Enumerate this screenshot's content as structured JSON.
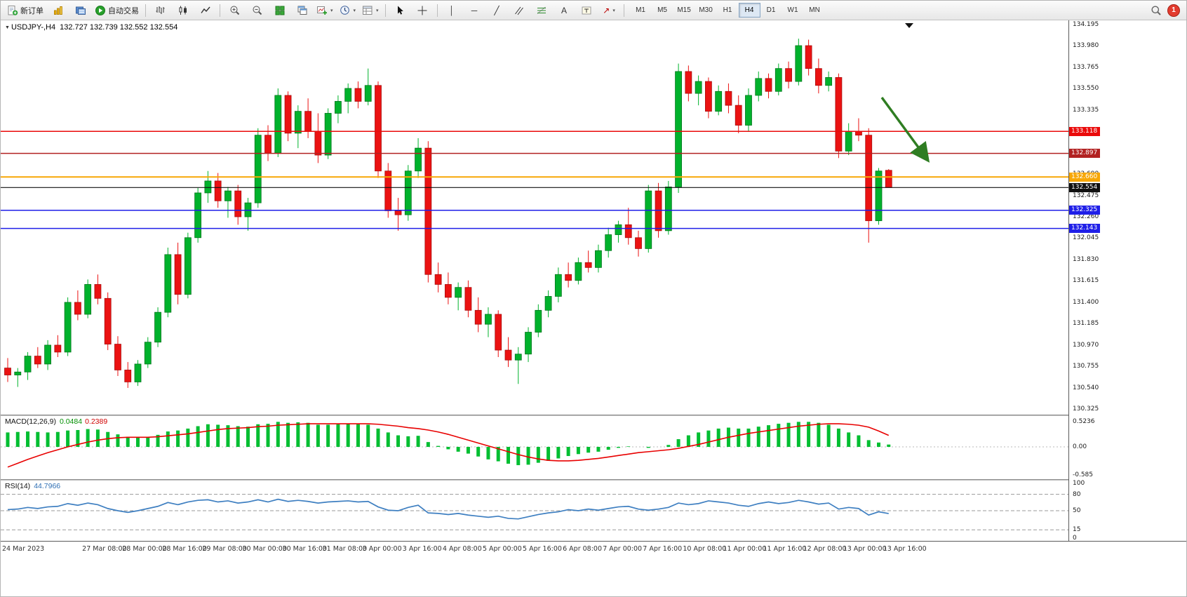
{
  "toolbar": {
    "new_order": "新订单",
    "auto_trading": "自动交易",
    "timeframes": [
      "M1",
      "M5",
      "M15",
      "M30",
      "H1",
      "H4",
      "D1",
      "W1",
      "MN"
    ],
    "active_timeframe": "H4",
    "notification_count": "1"
  },
  "chart": {
    "title": "USDJPY-,H4",
    "ohlc": "132.727 132.739 132.552 132.554",
    "axis_ticks": [
      "134.195",
      "133.980",
      "133.765",
      "133.550",
      "133.335",
      "133.120",
      "132.905",
      "132.690",
      "132.475",
      "132.260",
      "132.045",
      "131.830",
      "131.615",
      "131.400",
      "131.185",
      "130.970",
      "130.755",
      "130.540",
      "130.325"
    ],
    "hlines": [
      {
        "price": 133.118,
        "label": "133.118",
        "color": "#EA0A0A",
        "width": 1.5
      },
      {
        "price": 132.897,
        "label": "132.897",
        "color": "#B22222",
        "width": 1.5
      },
      {
        "price": 132.66,
        "label": "132.660",
        "color": "#F7A707",
        "width": 2
      },
      {
        "price": 132.554,
        "label": "132.554",
        "color": "#111111",
        "width": 1.2
      },
      {
        "price": 132.325,
        "label": "132.325",
        "color": "#1F1FE8",
        "width": 1.5
      },
      {
        "price": 132.143,
        "label": "132.143",
        "color": "#1F1FE8",
        "width": 1.5
      }
    ]
  },
  "macd": {
    "name": "MACD(12,26,9)",
    "main_value": "0.0484",
    "signal_value": "0.2389",
    "axis": [
      "0.5236",
      "0.00",
      "-0.585"
    ]
  },
  "rsi": {
    "name": "RSI(14)",
    "value": "44.7966",
    "axis": [
      "100",
      "80",
      "50",
      "15",
      "0"
    ],
    "levels": [
      80,
      50,
      15
    ]
  },
  "chart_data": {
    "type": "candlestick",
    "symbol": "USDJPY-",
    "period": "H4",
    "ylim": [
      130.3,
      134.22
    ],
    "colors": {
      "up": "#00B22C",
      "down": "#EB1212",
      "up_edge": "#00751c",
      "down_edge": "#a80f0f",
      "macd_hist": "#00BE31",
      "macd_signal": "#E80000",
      "rsi": "#3E7FC1",
      "arrow": "#2F7D22"
    },
    "candles": [
      [
        130.74,
        130.84,
        130.6,
        130.67
      ],
      [
        130.67,
        130.74,
        130.55,
        130.7
      ],
      [
        130.7,
        130.9,
        130.62,
        130.86
      ],
      [
        130.86,
        130.95,
        130.74,
        130.78
      ],
      [
        130.78,
        131.02,
        130.72,
        130.97
      ],
      [
        130.97,
        131.07,
        130.85,
        130.9
      ],
      [
        130.9,
        131.45,
        130.86,
        131.4
      ],
      [
        131.4,
        131.52,
        131.22,
        131.28
      ],
      [
        131.28,
        131.63,
        131.24,
        131.58
      ],
      [
        131.58,
        131.68,
        131.38,
        131.44
      ],
      [
        131.44,
        131.5,
        130.92,
        130.98
      ],
      [
        130.98,
        131.06,
        130.66,
        130.72
      ],
      [
        130.72,
        130.8,
        130.54,
        130.6
      ],
      [
        130.6,
        130.82,
        130.56,
        130.78
      ],
      [
        130.78,
        131.05,
        130.74,
        131.0
      ],
      [
        131.0,
        131.35,
        130.95,
        131.3
      ],
      [
        131.3,
        131.95,
        131.25,
        131.88
      ],
      [
        131.88,
        132.0,
        131.38,
        131.48
      ],
      [
        131.48,
        132.1,
        131.44,
        132.05
      ],
      [
        132.05,
        132.55,
        132.0,
        132.5
      ],
      [
        132.5,
        132.72,
        132.4,
        132.62
      ],
      [
        132.62,
        132.7,
        132.35,
        132.42
      ],
      [
        132.42,
        132.56,
        132.25,
        132.52
      ],
      [
        132.52,
        132.58,
        132.18,
        132.26
      ],
      [
        132.26,
        132.45,
        132.12,
        132.4
      ],
      [
        132.4,
        133.15,
        132.35,
        133.08
      ],
      [
        133.08,
        133.18,
        132.82,
        132.9
      ],
      [
        132.9,
        133.55,
        132.86,
        133.48
      ],
      [
        133.48,
        133.52,
        133.02,
        133.1
      ],
      [
        133.1,
        133.38,
        132.95,
        133.32
      ],
      [
        133.32,
        133.45,
        133.05,
        133.12
      ],
      [
        133.12,
        133.3,
        132.8,
        132.88
      ],
      [
        132.88,
        133.35,
        132.84,
        133.3
      ],
      [
        133.3,
        133.48,
        133.2,
        133.42
      ],
      [
        133.42,
        133.6,
        133.3,
        133.55
      ],
      [
        133.55,
        133.62,
        133.35,
        133.42
      ],
      [
        133.42,
        133.75,
        133.38,
        133.58
      ],
      [
        133.58,
        133.62,
        132.65,
        132.72
      ],
      [
        132.72,
        132.8,
        132.25,
        132.32
      ],
      [
        132.32,
        132.45,
        132.12,
        132.28
      ],
      [
        132.28,
        132.78,
        132.22,
        132.72
      ],
      [
        132.72,
        133.05,
        132.65,
        132.95
      ],
      [
        132.95,
        133.02,
        131.6,
        131.68
      ],
      [
        131.68,
        131.8,
        131.5,
        131.58
      ],
      [
        131.58,
        131.7,
        131.38,
        131.45
      ],
      [
        131.45,
        131.6,
        131.32,
        131.55
      ],
      [
        131.55,
        131.62,
        131.25,
        131.32
      ],
      [
        131.32,
        131.45,
        131.1,
        131.18
      ],
      [
        131.18,
        131.35,
        131.05,
        131.28
      ],
      [
        131.28,
        131.32,
        130.85,
        130.92
      ],
      [
        130.92,
        131.05,
        130.75,
        130.82
      ],
      [
        130.82,
        130.95,
        130.58,
        130.88
      ],
      [
        130.88,
        131.15,
        130.8,
        131.1
      ],
      [
        131.1,
        131.38,
        131.05,
        131.32
      ],
      [
        131.32,
        131.52,
        131.25,
        131.46
      ],
      [
        131.46,
        131.75,
        131.4,
        131.68
      ],
      [
        131.68,
        131.8,
        131.55,
        131.62
      ],
      [
        131.62,
        131.85,
        131.58,
        131.8
      ],
      [
        131.8,
        131.92,
        131.7,
        131.75
      ],
      [
        131.75,
        131.98,
        131.7,
        131.92
      ],
      [
        131.92,
        132.15,
        131.85,
        132.08
      ],
      [
        132.08,
        132.22,
        132.0,
        132.18
      ],
      [
        132.18,
        132.35,
        131.98,
        132.05
      ],
      [
        132.05,
        132.12,
        131.86,
        131.94
      ],
      [
        131.94,
        132.58,
        131.9,
        132.52
      ],
      [
        132.52,
        132.6,
        132.05,
        132.12
      ],
      [
        132.12,
        132.62,
        132.08,
        132.56
      ],
      [
        132.56,
        133.8,
        132.5,
        133.72
      ],
      [
        133.72,
        133.78,
        133.42,
        133.5
      ],
      [
        133.5,
        133.68,
        133.38,
        133.62
      ],
      [
        133.62,
        133.66,
        133.25,
        133.32
      ],
      [
        133.32,
        133.58,
        133.28,
        133.52
      ],
      [
        133.52,
        133.6,
        133.3,
        133.38
      ],
      [
        133.38,
        133.48,
        133.1,
        133.18
      ],
      [
        133.18,
        133.55,
        133.12,
        133.48
      ],
      [
        133.48,
        133.72,
        133.42,
        133.65
      ],
      [
        133.65,
        133.7,
        133.45,
        133.52
      ],
      [
        133.52,
        133.8,
        133.48,
        133.75
      ],
      [
        133.75,
        133.82,
        133.55,
        133.62
      ],
      [
        133.62,
        134.05,
        133.58,
        133.98
      ],
      [
        133.98,
        134.04,
        133.68,
        133.75
      ],
      [
        133.75,
        133.85,
        133.5,
        133.58
      ],
      [
        133.58,
        133.72,
        133.52,
        133.66
      ],
      [
        133.66,
        133.7,
        132.85,
        132.92
      ],
      [
        132.92,
        133.2,
        132.88,
        133.12
      ],
      [
        133.12,
        133.25,
        133.02,
        133.08
      ],
      [
        133.08,
        133.15,
        132.0,
        132.22
      ],
      [
        132.22,
        132.75,
        132.18,
        132.72
      ],
      [
        132.727,
        132.739,
        132.552,
        132.554
      ]
    ],
    "macd_hist": [
      0.3,
      0.31,
      0.32,
      0.31,
      0.3,
      0.31,
      0.34,
      0.35,
      0.37,
      0.36,
      0.31,
      0.26,
      0.21,
      0.19,
      0.21,
      0.25,
      0.32,
      0.34,
      0.38,
      0.43,
      0.47,
      0.46,
      0.45,
      0.43,
      0.42,
      0.47,
      0.48,
      0.52,
      0.5,
      0.51,
      0.5,
      0.46,
      0.46,
      0.47,
      0.48,
      0.47,
      0.46,
      0.38,
      0.3,
      0.24,
      0.22,
      0.23,
      0.1,
      0.02,
      -0.05,
      -0.1,
      -0.14,
      -0.2,
      -0.26,
      -0.3,
      -0.35,
      -0.38,
      -0.37,
      -0.33,
      -0.29,
      -0.24,
      -0.19,
      -0.15,
      -0.12,
      -0.1,
      -0.06,
      -0.02,
      0.01,
      0.0,
      -0.02,
      0.0,
      0.04,
      0.16,
      0.24,
      0.3,
      0.34,
      0.38,
      0.4,
      0.38,
      0.38,
      0.42,
      0.45,
      0.48,
      0.5,
      0.52,
      0.52,
      0.5,
      0.46,
      0.38,
      0.3,
      0.24,
      0.14,
      0.09,
      0.0484
    ],
    "macd_signal": [
      -0.42,
      -0.34,
      -0.26,
      -0.19,
      -0.12,
      -0.06,
      0.0,
      0.05,
      0.1,
      0.14,
      0.17,
      0.19,
      0.2,
      0.2,
      0.2,
      0.21,
      0.23,
      0.25,
      0.27,
      0.3,
      0.33,
      0.36,
      0.38,
      0.39,
      0.4,
      0.42,
      0.43,
      0.45,
      0.46,
      0.47,
      0.48,
      0.48,
      0.48,
      0.48,
      0.48,
      0.48,
      0.48,
      0.47,
      0.45,
      0.43,
      0.4,
      0.38,
      0.35,
      0.31,
      0.26,
      0.2,
      0.14,
      0.08,
      0.02,
      -0.04,
      -0.1,
      -0.16,
      -0.21,
      -0.25,
      -0.28,
      -0.29,
      -0.29,
      -0.28,
      -0.26,
      -0.24,
      -0.21,
      -0.18,
      -0.15,
      -0.12,
      -0.1,
      -0.08,
      -0.06,
      -0.03,
      0.01,
      0.05,
      0.1,
      0.15,
      0.2,
      0.24,
      0.28,
      0.31,
      0.34,
      0.37,
      0.4,
      0.43,
      0.45,
      0.47,
      0.48,
      0.48,
      0.47,
      0.45,
      0.41,
      0.33,
      0.2389
    ],
    "rsi_values": [
      52,
      53,
      56,
      54,
      57,
      58,
      63,
      60,
      64,
      61,
      54,
      50,
      47,
      50,
      54,
      58,
      65,
      61,
      66,
      69,
      70,
      66,
      68,
      64,
      66,
      70,
      66,
      71,
      67,
      69,
      67,
      64,
      66,
      67,
      68,
      66,
      67,
      57,
      51,
      50,
      56,
      60,
      46,
      45,
      43,
      45,
      42,
      40,
      38,
      40,
      36,
      35,
      39,
      43,
      46,
      48,
      52,
      50,
      53,
      51,
      54,
      57,
      58,
      53,
      51,
      53,
      56,
      64,
      61,
      63,
      68,
      66,
      64,
      60,
      58,
      63,
      66,
      63,
      65,
      69,
      66,
      62,
      64,
      53,
      56,
      54,
      42,
      48,
      44.7966
    ],
    "time_labels": [
      {
        "bar": 1,
        "text": "24 Mar 2023"
      },
      {
        "bar": 9,
        "text": "27 Mar 08:00"
      },
      {
        "bar": 13,
        "text": "28 Mar 00:00"
      },
      {
        "bar": 17,
        "text": "28 Mar 16:00"
      },
      {
        "bar": 21,
        "text": "29 Mar 08:00"
      },
      {
        "bar": 25,
        "text": "30 Mar 00:00"
      },
      {
        "bar": 29,
        "text": "30 Mar 16:00"
      },
      {
        "bar": 33,
        "text": "31 Mar 08:00"
      },
      {
        "bar": 37,
        "text": "3 Apr 00:00"
      },
      {
        "bar": 41,
        "text": "3 Apr 16:00"
      },
      {
        "bar": 45,
        "text": "4 Apr 08:00"
      },
      {
        "bar": 49,
        "text": "5 Apr 00:00"
      },
      {
        "bar": 53,
        "text": "5 Apr 16:00"
      },
      {
        "bar": 57,
        "text": "6 Apr 08:00"
      },
      {
        "bar": 61,
        "text": "7 Apr 00:00"
      },
      {
        "bar": 65,
        "text": "7 Apr 16:00"
      },
      {
        "bar": 69,
        "text": "10 Apr 08:00"
      },
      {
        "bar": 73,
        "text": "11 Apr 00:00"
      },
      {
        "bar": 77,
        "text": "11 Apr 16:00"
      },
      {
        "bar": 81,
        "text": "12 Apr 08:00"
      },
      {
        "bar": 85,
        "text": "13 Apr 00:00"
      },
      {
        "bar": 89,
        "text": "13 Apr 16:00"
      }
    ]
  }
}
